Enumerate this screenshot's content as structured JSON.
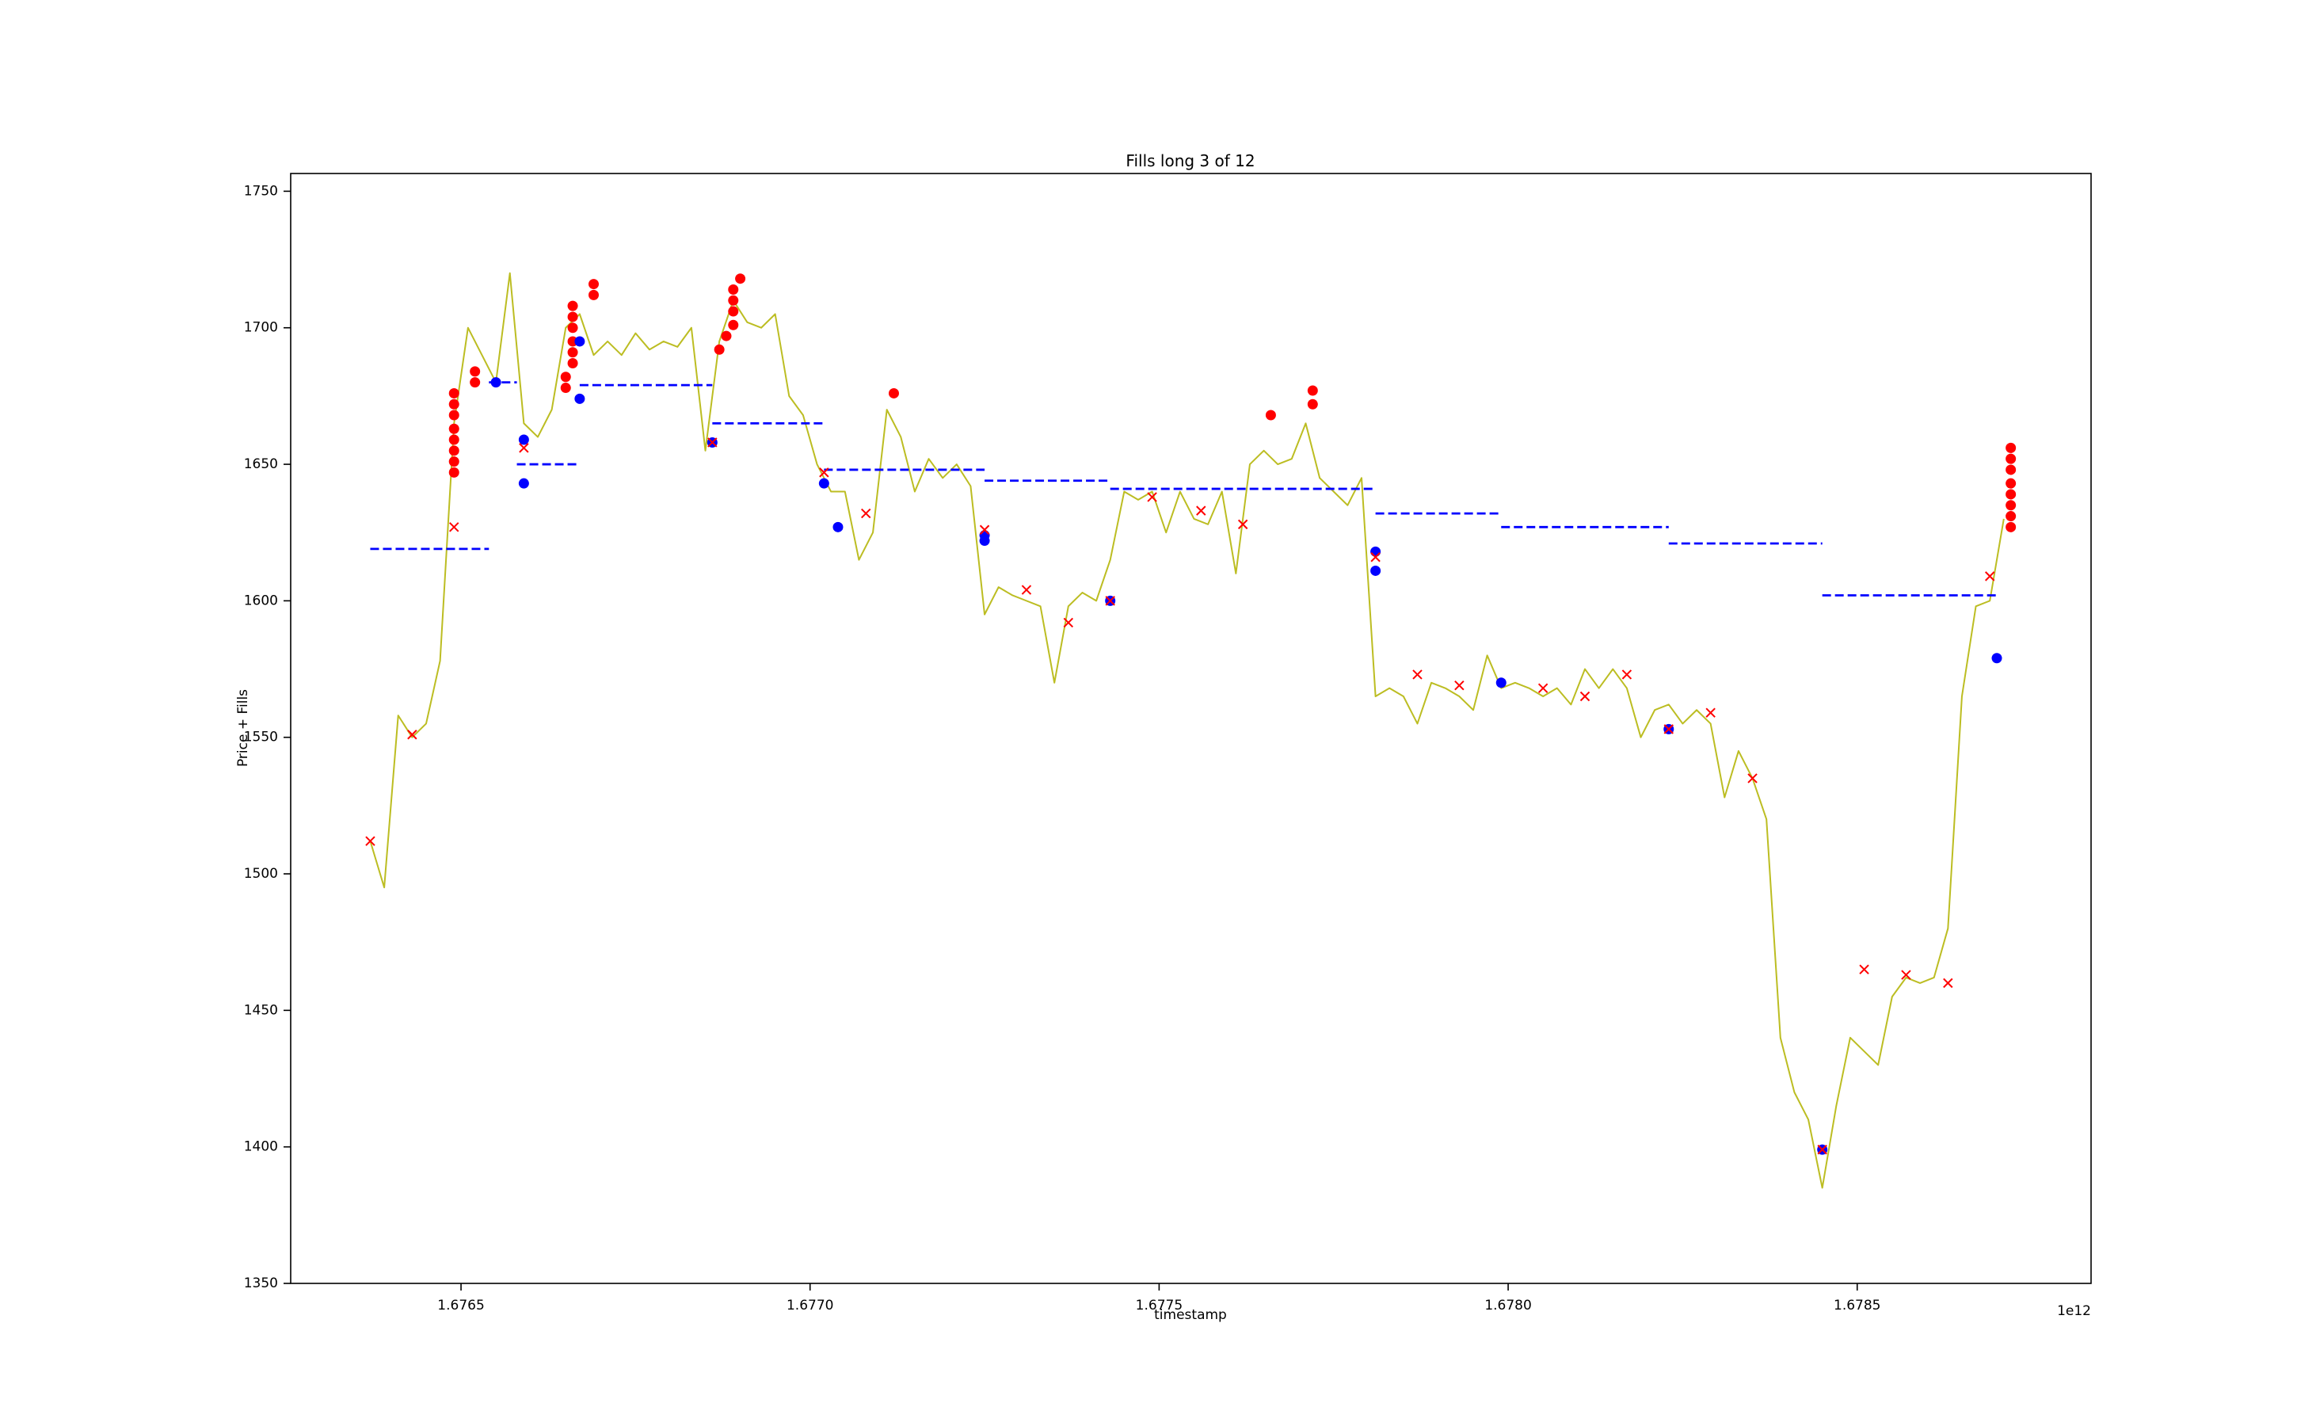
{
  "chart_data": {
    "type": "line",
    "title": "Fills long 3 of 12",
    "x_label": "timestamp",
    "y_label": "Price + Fills",
    "x_offset_label": "1e12",
    "xlim": [
      1.676256,
      1.678835
    ],
    "ylim": [
      1350,
      1756.5
    ],
    "xticks": [
      1.6765,
      {
        "value": 1.677,
        "label": "1.6770"
      },
      1.6775,
      {
        "value": 1.678,
        "label": "1.6780"
      },
      1.6785
    ],
    "yticks": [
      1350,
      1400,
      1450,
      1500,
      1550,
      1600,
      1650,
      1700,
      1750
    ],
    "grid": false,
    "series": [
      {
        "style": "solid",
        "color": "#bcbd22",
        "x": [
          1.67637,
          1.67639,
          1.67641,
          1.67643,
          1.67645,
          1.67647,
          1.67649,
          1.67651,
          1.67653,
          1.67655,
          1.67657,
          1.67659,
          1.67661,
          1.67663,
          1.67665,
          1.67667,
          1.67669,
          1.67671,
          1.67673,
          1.67675,
          1.67677,
          1.67679,
          1.67681,
          1.67683,
          1.67685,
          1.67687,
          1.67689,
          1.67691,
          1.67693,
          1.67695,
          1.67697,
          1.67699,
          1.67701,
          1.67703,
          1.67705,
          1.67707,
          1.67709,
          1.67711,
          1.67713,
          1.67715,
          1.67717,
          1.67719,
          1.67721,
          1.67723,
          1.67725,
          1.67727,
          1.67729,
          1.67731,
          1.67733,
          1.67735,
          1.67737,
          1.67739,
          1.67741,
          1.67743,
          1.67745,
          1.67747,
          1.67749,
          1.67751,
          1.67753,
          1.67755,
          1.67757,
          1.67759,
          1.67761,
          1.67763,
          1.67765,
          1.67767,
          1.67769,
          1.67771,
          1.67773,
          1.67775,
          1.67777,
          1.67779,
          1.67781,
          1.67783,
          1.67785,
          1.67787,
          1.67789,
          1.67791,
          1.67793,
          1.67795,
          1.67797,
          1.67799,
          1.67801,
          1.67803,
          1.67805,
          1.67807,
          1.67809,
          1.67811,
          1.67813,
          1.67815,
          1.67817,
          1.67819,
          1.67821,
          1.67823,
          1.67825,
          1.67827,
          1.67829,
          1.67831,
          1.67833,
          1.67835,
          1.67837,
          1.67839,
          1.67841,
          1.67843,
          1.67845,
          1.67847,
          1.67849,
          1.67851,
          1.67853,
          1.67855,
          1.67857,
          1.67859,
          1.67861,
          1.67863,
          1.67865,
          1.67867,
          1.67869,
          1.67871
        ],
        "values": [
          1512,
          1495,
          1558,
          1550,
          1555,
          1578,
          1665,
          1700,
          1690,
          1680,
          1720,
          1665,
          1660,
          1670,
          1700,
          1705,
          1690,
          1695,
          1690,
          1698,
          1692,
          1695,
          1693,
          1700,
          1655,
          1695,
          1710,
          1702,
          1700,
          1705,
          1675,
          1668,
          1650,
          1640,
          1640,
          1615,
          1625,
          1670,
          1660,
          1640,
          1652,
          1645,
          1650,
          1642,
          1595,
          1605,
          1602,
          1600,
          1598,
          1570,
          1598,
          1603,
          1600,
          1615,
          1640,
          1637,
          1640,
          1625,
          1640,
          1630,
          1628,
          1640,
          1610,
          1650,
          1655,
          1650,
          1652,
          1665,
          1645,
          1640,
          1635,
          1645,
          1565,
          1568,
          1565,
          1555,
          1570,
          1568,
          1565,
          1560,
          1580,
          1568,
          1570,
          1568,
          1565,
          1568,
          1562,
          1575,
          1568,
          1575,
          1568,
          1550,
          1560,
          1562,
          1555,
          1560,
          1555,
          1528,
          1545,
          1535,
          1520,
          1440,
          1420,
          1410,
          1385,
          1415,
          1440,
          1435,
          1430,
          1455,
          1462,
          1460,
          1462,
          1480,
          1565,
          1598,
          1600,
          1630
        ]
      },
      {
        "style": "dashed",
        "color": "#0000ff",
        "x": [
          1.67637,
          1.67654,
          1.67654,
          1.67654,
          1.67658,
          1.67658,
          1.67658,
          1.67667,
          1.67667,
          1.67667,
          1.67686,
          1.67686,
          1.67686,
          1.67702,
          1.67702,
          1.67702,
          1.67725,
          1.67725,
          1.67725,
          1.67743,
          1.67743,
          1.67743,
          1.67781,
          1.67781,
          1.67781,
          1.67799,
          1.67799,
          1.67799,
          1.67823,
          1.67823,
          1.67823,
          1.67845,
          1.67845,
          1.67845,
          1.6787
        ],
        "values": [
          1619,
          1619,
          null,
          1680,
          1680,
          null,
          1650,
          1650,
          null,
          1679,
          1679,
          null,
          1665,
          1665,
          null,
          1648,
          1648,
          null,
          1644,
          1644,
          null,
          1641,
          1641,
          null,
          1632,
          1632,
          null,
          1627,
          1627,
          null,
          1621,
          1621,
          null,
          1602,
          1602
        ]
      },
      {
        "marker": "o",
        "color": "#ff0000",
        "x": [
          1.67649,
          1.67649,
          1.67649,
          1.67649,
          1.67649,
          1.67649,
          1.67649,
          1.67649,
          1.67652,
          1.67652,
          1.67665,
          1.67665,
          1.67666,
          1.67666,
          1.67666,
          1.67666,
          1.67666,
          1.67666,
          1.67669,
          1.67669,
          1.67687,
          1.67688,
          1.67689,
          1.67689,
          1.67689,
          1.67689,
          1.6769,
          1.67712,
          1.67766,
          1.67772,
          1.67772,
          1.67872,
          1.67872,
          1.67872,
          1.67872,
          1.67872,
          1.67872,
          1.67872,
          1.67872
        ],
        "values": [
          1647,
          1651,
          1655,
          1659,
          1663,
          1668,
          1672,
          1676,
          1680,
          1684,
          1678,
          1682,
          1687,
          1691,
          1695,
          1700,
          1704,
          1708,
          1712,
          1716,
          1692,
          1697,
          1701,
          1706,
          1710,
          1714,
          1718,
          1676,
          1668,
          1672,
          1677,
          1627,
          1631,
          1635,
          1639,
          1643,
          1648,
          1652,
          1656
        ]
      },
      {
        "marker": "o",
        "color": "#0000ff",
        "x": [
          1.67655,
          1.67659,
          1.67659,
          1.67667,
          1.67667,
          1.67686,
          1.67702,
          1.67704,
          1.67725,
          1.67725,
          1.67743,
          1.67781,
          1.67781,
          1.67799,
          1.67823,
          1.67845,
          1.6787
        ],
        "values": [
          1680,
          1659,
          1643,
          1695,
          1674,
          1658,
          1643,
          1627,
          1624,
          1622,
          1600,
          1618,
          1611,
          1570,
          1553,
          1399,
          1579
        ]
      },
      {
        "marker": "x",
        "color": "#ff0000",
        "x": [
          1.67637,
          1.67643,
          1.67649,
          1.67659,
          1.67686,
          1.67702,
          1.67708,
          1.67725,
          1.67731,
          1.67737,
          1.67743,
          1.67749,
          1.67756,
          1.67762,
          1.67781,
          1.67787,
          1.67793,
          1.67805,
          1.67811,
          1.67817,
          1.67823,
          1.67829,
          1.67835,
          1.67845,
          1.67851,
          1.67857,
          1.67863,
          1.67869
        ],
        "values": [
          1512,
          1551,
          1627,
          1656,
          1658,
          1647,
          1632,
          1626,
          1604,
          1592,
          1600,
          1638,
          1633,
          1628,
          1616,
          1573,
          1569,
          1568,
          1565,
          1573,
          1553,
          1559,
          1535,
          1399,
          1465,
          1463,
          1460,
          1609
        ]
      }
    ]
  }
}
